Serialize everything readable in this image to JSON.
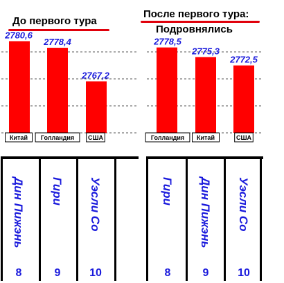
{
  "left_panel": {
    "title": "До первого тура"
  },
  "right_panel": {
    "title": "После первого тура:",
    "subtitle": "Подровнялись"
  },
  "colors": {
    "bar": "#ff0000",
    "text_blue": "#1a1adc",
    "underline": "#e0000b"
  },
  "chart_data": [
    {
      "type": "bar",
      "title": "До первого тура",
      "categories": [
        "Дин Пижэнь",
        "Гири",
        "Уэсли Со"
      ],
      "countries": [
        "Китай",
        "Голландия",
        "США"
      ],
      "numbers": [
        "8",
        "9",
        "10"
      ],
      "values": [
        2780.6,
        2778.4,
        2767.2
      ],
      "value_labels": [
        "2780,6",
        "2778,4",
        "2767,2"
      ],
      "grid": true
    },
    {
      "type": "bar",
      "title": "После первого тура:",
      "subtitle": "Подровнялись",
      "categories": [
        "Гири",
        "Дин Пижэнь",
        "Уэсли Со"
      ],
      "countries": [
        "Голландия",
        "Китай",
        "США"
      ],
      "numbers": [
        "8",
        "9",
        "10"
      ],
      "values": [
        2778.5,
        2775.3,
        2772.5
      ],
      "value_labels": [
        "2778,5",
        "2775,3",
        "2772,5"
      ],
      "grid": true
    }
  ]
}
